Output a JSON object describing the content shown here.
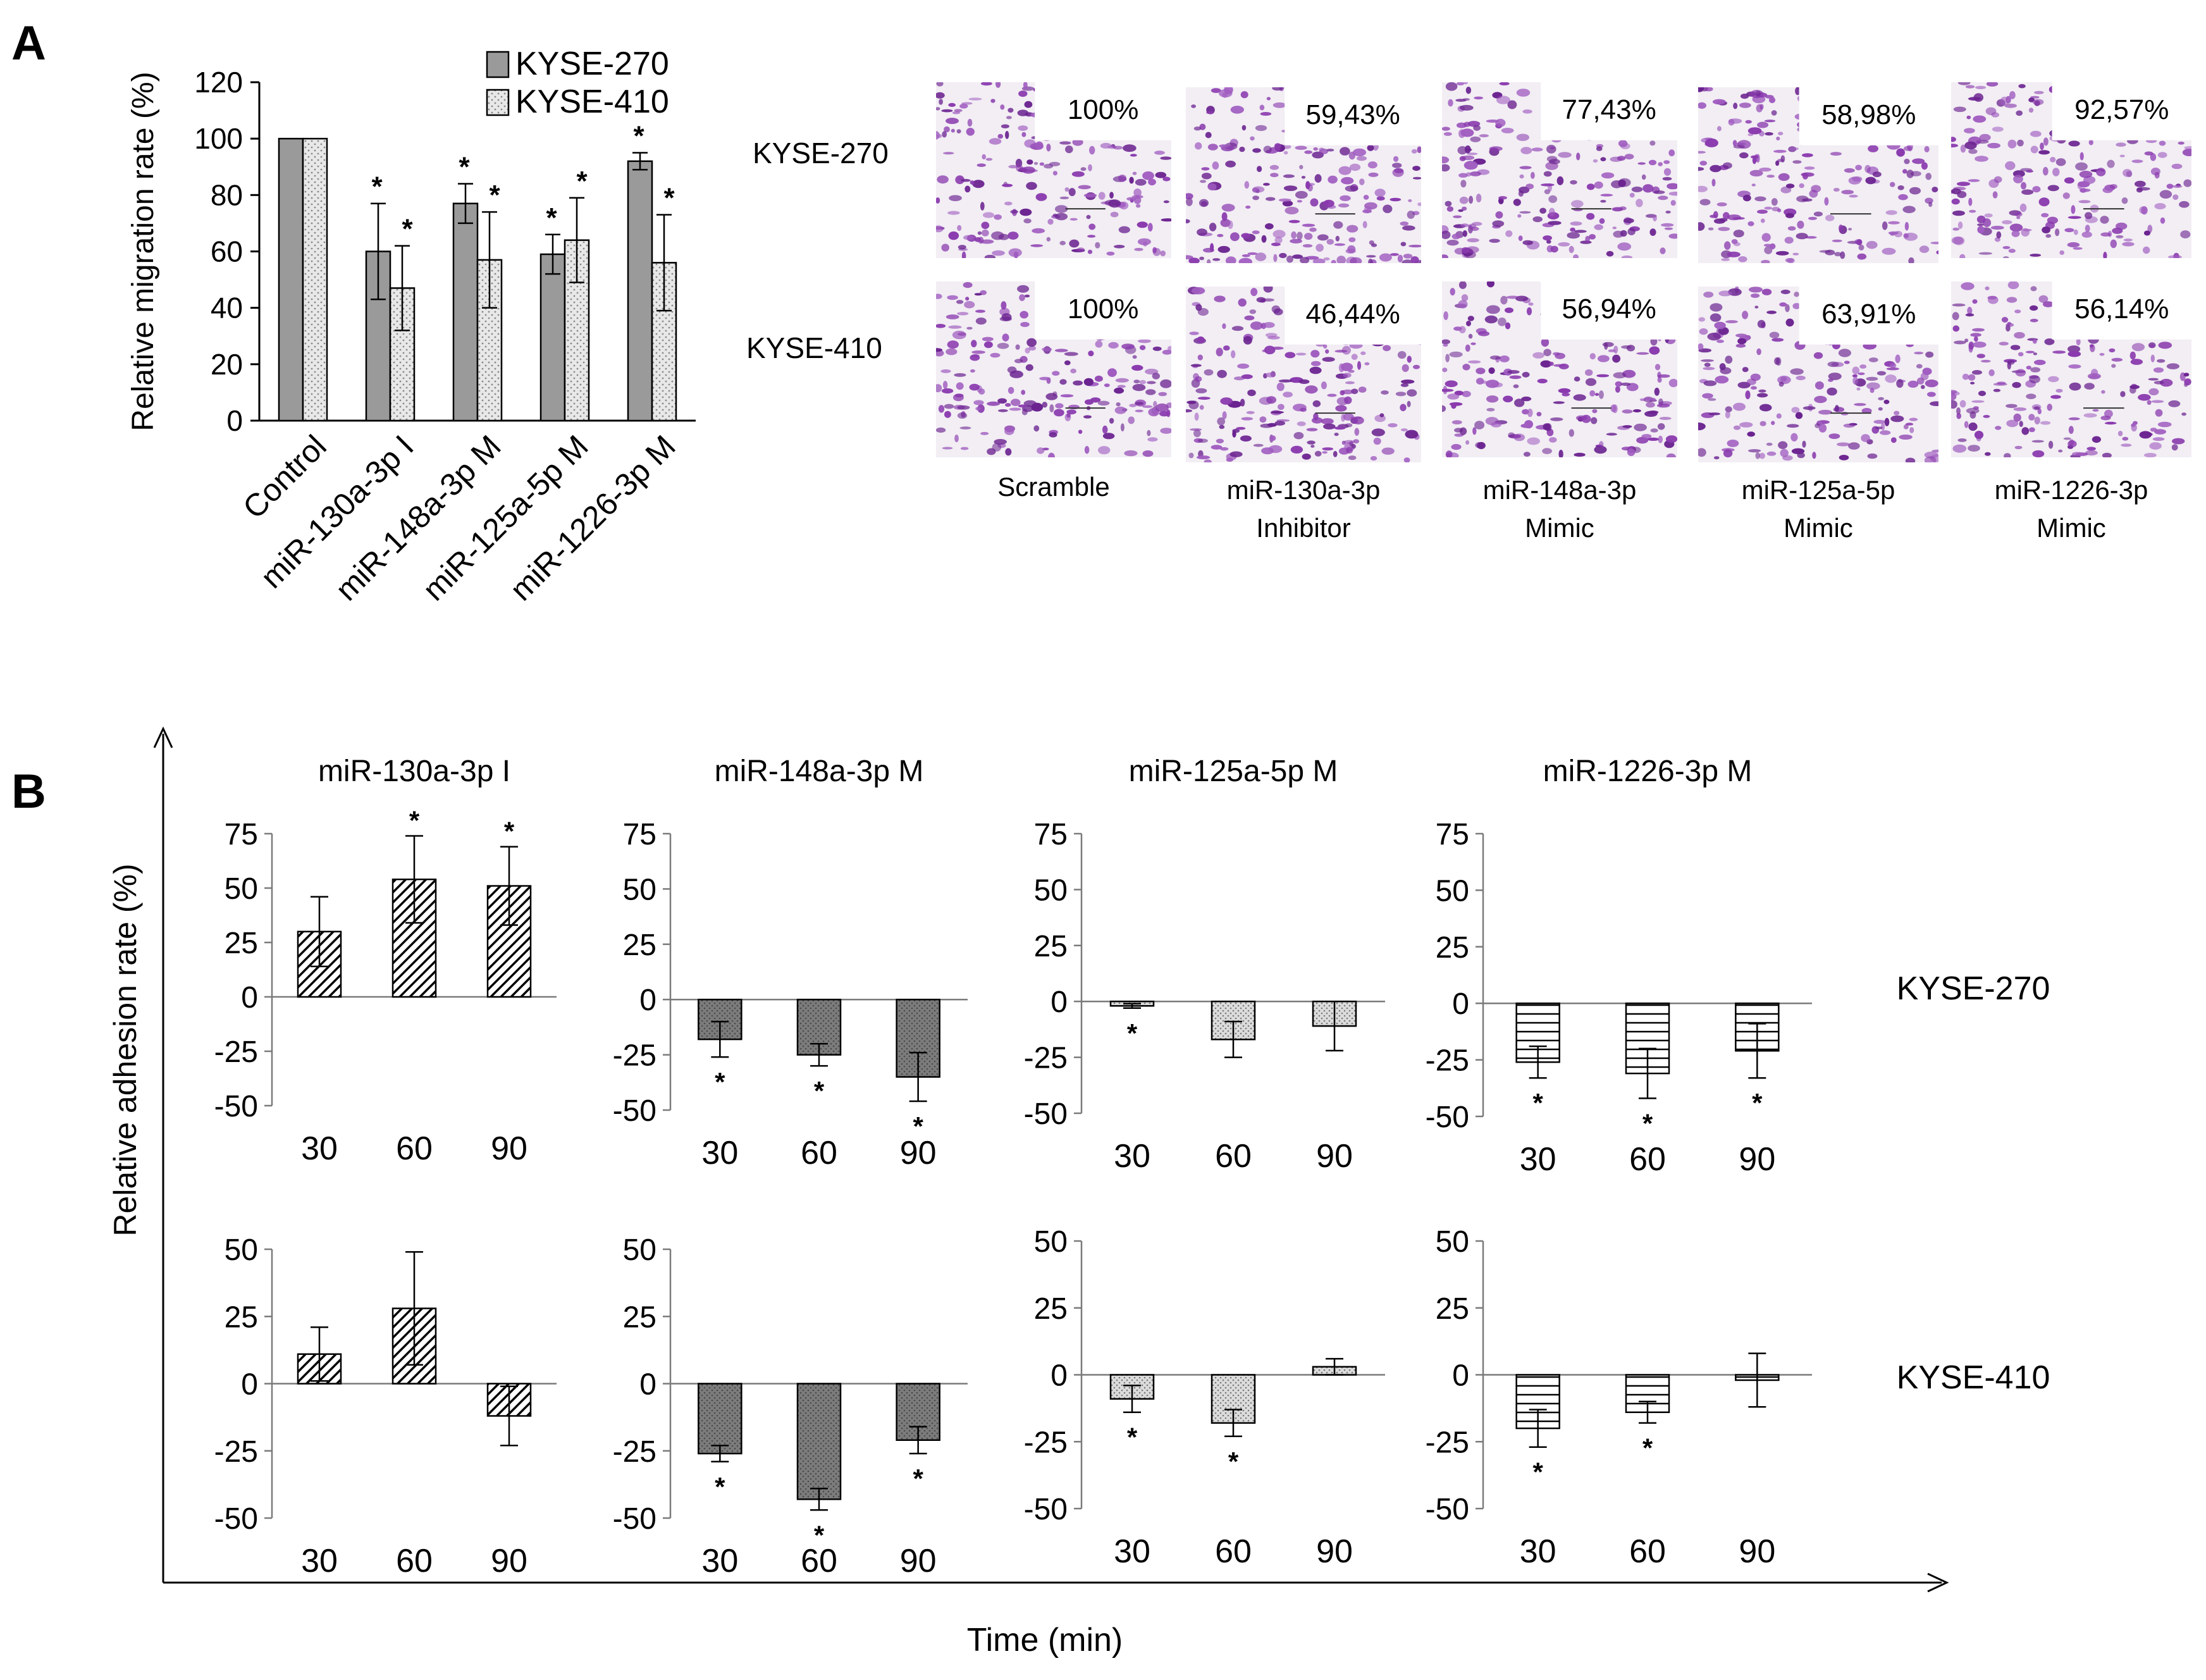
{
  "panel_labels": {
    "a": "A",
    "b": "B"
  },
  "colors": {
    "kyse270_fill": "#9a9a9a",
    "kyse410_fill": "#e6e6e6",
    "stain": "#7a2a9a",
    "background": "#f2eef4"
  },
  "photo_grid": {
    "rows": [
      "KYSE-270",
      "KYSE-410"
    ],
    "columns": [
      {
        "line1": "Scramble",
        "line2": ""
      },
      {
        "line1": "miR-130a-3p",
        "line2": "Inhibitor"
      },
      {
        "line1": "miR-148a-3p",
        "line2": "Mimic"
      },
      {
        "line1": "miR-125a-5p",
        "line2": "Mimic"
      },
      {
        "line1": "miR-1226-3p",
        "line2": "Mimic"
      }
    ],
    "percentages": [
      [
        "100%",
        "59,43%",
        "77,43%",
        "58,98%",
        "92,57%"
      ],
      [
        "100%",
        "46,44%",
        "56,94%",
        "63,91%",
        "56,14%"
      ]
    ]
  },
  "chart_data": [
    {
      "id": "migration",
      "type": "bar",
      "title": "",
      "xlabel": "",
      "ylabel": "Relative migration rate (%)",
      "ylim": [
        0,
        120
      ],
      "yticks": [
        0,
        20,
        40,
        60,
        80,
        100,
        120
      ],
      "categories": [
        "Control",
        "miR-130a-3p I",
        "miR-148a-3p M",
        "miR-125a-5p M",
        "miR-1226-3p M"
      ],
      "legend_position": "top-right",
      "series": [
        {
          "name": "KYSE-270",
          "values": [
            100,
            60,
            77,
            59,
            92
          ],
          "errors": [
            0,
            17,
            7,
            7,
            3
          ],
          "significant": [
            false,
            true,
            true,
            true,
            true
          ]
        },
        {
          "name": "KYSE-410",
          "values": [
            100,
            47,
            57,
            64,
            56
          ],
          "errors": [
            0,
            15,
            17,
            15,
            17
          ],
          "significant": [
            false,
            true,
            true,
            true,
            true
          ]
        }
      ]
    },
    {
      "id": "adhesion",
      "type": "bar",
      "ylabel": "Relative adhesion rate (%)",
      "xlabel": "Time (min)",
      "categories": [
        "30",
        "60",
        "90"
      ],
      "panels": [
        {
          "title": "miR-130a-3p I",
          "cell_line": "KYSE-270",
          "pattern": "diag",
          "ylim": [
            -50,
            75
          ],
          "yticks": [
            -50,
            -25,
            0,
            25,
            50,
            75
          ],
          "values": [
            30,
            54,
            51
          ],
          "errors": [
            16,
            20,
            18
          ],
          "significant": [
            false,
            true,
            true
          ]
        },
        {
          "title": "miR-148a-3p M",
          "cell_line": "KYSE-270",
          "pattern": "dark",
          "ylim": [
            -50,
            75
          ],
          "yticks": [
            -50,
            -25,
            0,
            25,
            50,
            75
          ],
          "values": [
            -18,
            -25,
            -35
          ],
          "errors": [
            8,
            5,
            11
          ],
          "significant": [
            true,
            true,
            true
          ]
        },
        {
          "title": "miR-125a-5p M",
          "cell_line": "KYSE-270",
          "pattern": "dots",
          "ylim": [
            -50,
            75
          ],
          "yticks": [
            -50,
            -25,
            0,
            25,
            50,
            75
          ],
          "values": [
            -2,
            -17,
            -11
          ],
          "errors": [
            1,
            8,
            11
          ],
          "significant": [
            true,
            false,
            false
          ]
        },
        {
          "title": "miR-1226-3p M",
          "cell_line": "KYSE-270",
          "pattern": "horiz",
          "ylim": [
            -50,
            75
          ],
          "yticks": [
            -50,
            -25,
            0,
            25,
            50,
            75
          ],
          "values": [
            -26,
            -31,
            -21
          ],
          "errors": [
            7,
            11,
            12
          ],
          "significant": [
            true,
            true,
            true
          ]
        },
        {
          "title": "",
          "cell_line": "KYSE-410",
          "pattern": "diag",
          "ylim": [
            -50,
            50
          ],
          "yticks": [
            -50,
            -25,
            0,
            25,
            50
          ],
          "values": [
            11,
            28,
            -12
          ],
          "errors": [
            10,
            21,
            11
          ],
          "significant": [
            false,
            false,
            false
          ]
        },
        {
          "title": "",
          "cell_line": "KYSE-410",
          "pattern": "dark",
          "ylim": [
            -50,
            50
          ],
          "yticks": [
            -50,
            -25,
            0,
            25,
            50
          ],
          "values": [
            -26,
            -43,
            -21
          ],
          "errors": [
            3,
            4,
            5
          ],
          "significant": [
            true,
            true,
            true
          ]
        },
        {
          "title": "",
          "cell_line": "KYSE-410",
          "pattern": "dots",
          "ylim": [
            -50,
            50
          ],
          "yticks": [
            -50,
            -25,
            0,
            25,
            50
          ],
          "values": [
            -9,
            -18,
            3
          ],
          "errors": [
            5,
            5,
            3
          ],
          "significant": [
            true,
            true,
            false
          ]
        },
        {
          "title": "",
          "cell_line": "KYSE-410",
          "pattern": "horiz",
          "ylim": [
            -50,
            50
          ],
          "yticks": [
            -50,
            -25,
            0,
            25,
            50
          ],
          "values": [
            -20,
            -14,
            -2
          ],
          "errors": [
            7,
            4,
            10
          ],
          "significant": [
            true,
            true,
            false
          ]
        }
      ]
    }
  ]
}
